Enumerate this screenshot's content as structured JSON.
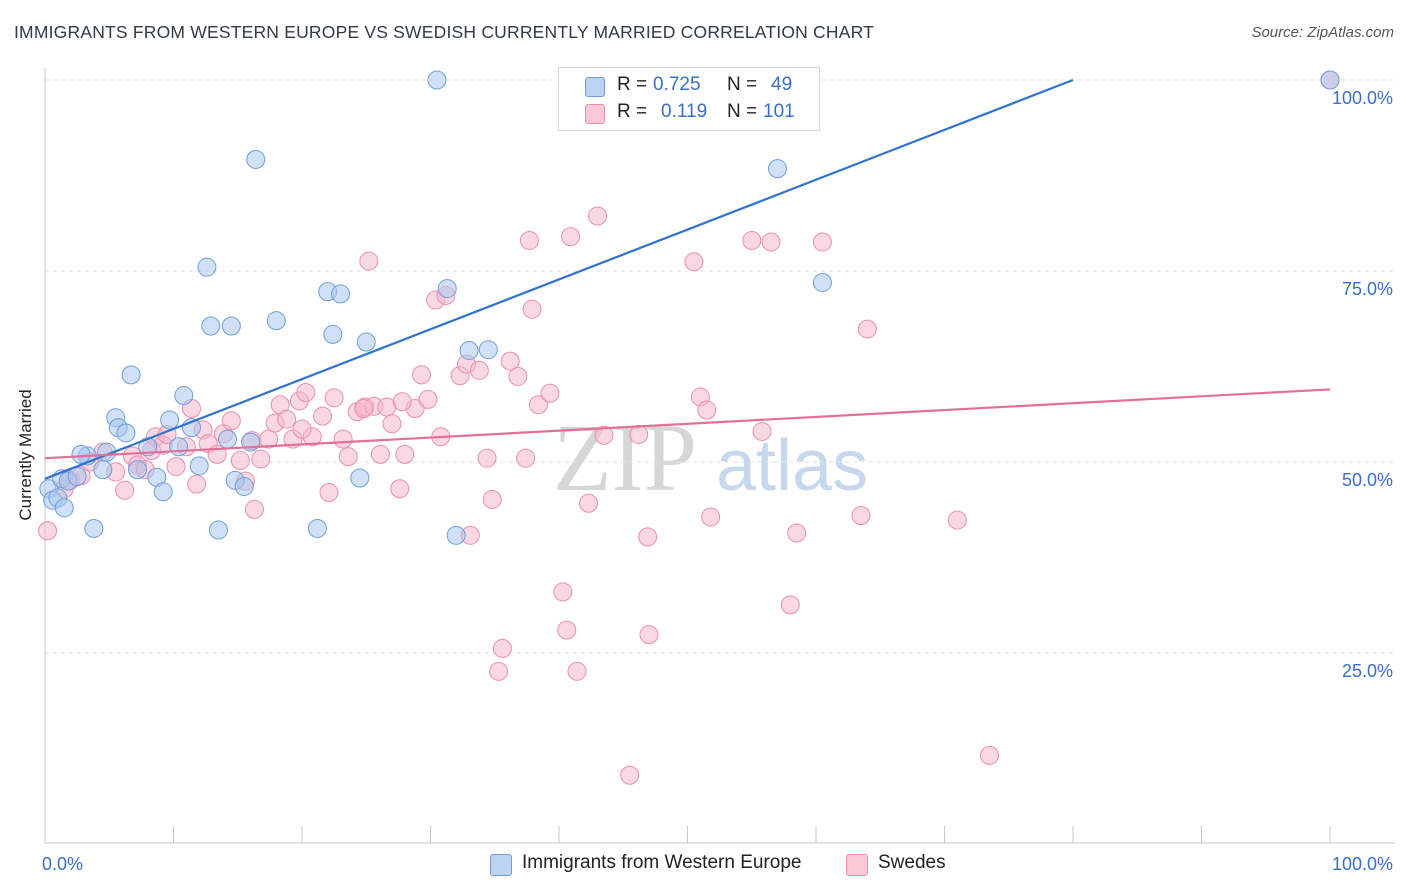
{
  "header": {
    "title": "IMMIGRANTS FROM WESTERN EUROPE VS SWEDISH CURRENTLY MARRIED CORRELATION CHART",
    "source": "Source: ZipAtlas.com"
  },
  "legend": {
    "r_label": "R =",
    "n_label": "N =",
    "series1": {
      "r": "0.725",
      "n": "49"
    },
    "series2": {
      "r": "0.119",
      "n": "101"
    }
  },
  "bottom_legend": {
    "series1": "Immigrants from Western Europe",
    "series2": "Swedes"
  },
  "watermark": {
    "zip": "ZIP",
    "atlas": "atlas"
  },
  "colors": {
    "blue_fill": "#a9c6ee",
    "blue_stroke": "#6f9fdb",
    "blue_line": "#2f72d0",
    "pink_fill": "#f6b8cc",
    "pink_stroke": "#ea8fae",
    "pink_line": "#e36f98",
    "axis_label": "#3a6fc4",
    "grid": "#e2e2e2"
  },
  "chart_data": {
    "type": "scatter",
    "title": "IMMIGRANTS FROM WESTERN EUROPE VS SWEDISH CURRENTLY MARRIED CORRELATION CHART",
    "xlabel": "",
    "ylabel": "Currently Married",
    "xlim": [
      0,
      100
    ],
    "ylim": [
      0,
      105
    ],
    "x_tick_labels": [
      "0.0%",
      "100.0%"
    ],
    "y_ticks": [
      25,
      50,
      75,
      100
    ],
    "y_tick_labels": [
      "25.0%",
      "50.0%",
      "75.0%",
      "100.0%"
    ],
    "grid": true,
    "legend_position": "top-center",
    "series": [
      {
        "name": "Immigrants from Western Europe",
        "R": 0.725,
        "N": 49,
        "trend": {
          "x": [
            0,
            80
          ],
          "y": [
            47.8,
            100
          ]
        },
        "points": [
          [
            0.3,
            46.5
          ],
          [
            0.6,
            45.0
          ],
          [
            1.0,
            45.3
          ],
          [
            1.3,
            47.8
          ],
          [
            1.8,
            47.5
          ],
          [
            2.5,
            48.1
          ],
          [
            3.3,
            50.8
          ],
          [
            3.8,
            41.3
          ],
          [
            4.5,
            49.0
          ],
          [
            4.8,
            51.3
          ],
          [
            5.5,
            55.8
          ],
          [
            5.7,
            54.5
          ],
          [
            6.3,
            53.8
          ],
          [
            6.7,
            61.4
          ],
          [
            7.2,
            49.0
          ],
          [
            8.0,
            52.0
          ],
          [
            8.7,
            48.0
          ],
          [
            9.2,
            46.1
          ],
          [
            9.7,
            55.5
          ],
          [
            10.4,
            52.0
          ],
          [
            10.8,
            58.7
          ],
          [
            11.4,
            54.5
          ],
          [
            12.0,
            49.5
          ],
          [
            12.6,
            75.5
          ],
          [
            12.9,
            67.8
          ],
          [
            13.5,
            41.1
          ],
          [
            14.2,
            53.0
          ],
          [
            14.5,
            67.8
          ],
          [
            14.8,
            47.6
          ],
          [
            15.5,
            46.8
          ],
          [
            16.0,
            52.6
          ],
          [
            16.4,
            89.6
          ],
          [
            18.0,
            68.5
          ],
          [
            21.2,
            41.3
          ],
          [
            22.0,
            72.3
          ],
          [
            22.4,
            66.7
          ],
          [
            23.0,
            72.0
          ],
          [
            25.0,
            65.7
          ],
          [
            24.5,
            47.9
          ],
          [
            30.5,
            100.0
          ],
          [
            31.3,
            72.7
          ],
          [
            32.0,
            40.4
          ],
          [
            33.0,
            64.6
          ],
          [
            34.5,
            64.7
          ],
          [
            57.0,
            88.4
          ],
          [
            60.5,
            73.5
          ],
          [
            100.0,
            100.0
          ],
          [
            1.5,
            44.0
          ],
          [
            2.8,
            51.0
          ]
        ]
      },
      {
        "name": "Swedes",
        "R": 0.119,
        "N": 101,
        "trend": {
          "x": [
            0,
            100
          ],
          "y": [
            50.5,
            59.5
          ]
        },
        "points": [
          [
            0.2,
            41.0
          ],
          [
            1.5,
            46.5
          ],
          [
            2.0,
            47.6
          ],
          [
            2.8,
            48.2
          ],
          [
            3.5,
            50.0
          ],
          [
            4.5,
            51.3
          ],
          [
            5.5,
            48.7
          ],
          [
            6.2,
            46.3
          ],
          [
            6.8,
            50.8
          ],
          [
            7.2,
            49.6
          ],
          [
            7.8,
            49.0
          ],
          [
            8.3,
            51.5
          ],
          [
            8.6,
            53.3
          ],
          [
            9.2,
            52.2
          ],
          [
            9.5,
            53.6
          ],
          [
            10.2,
            49.4
          ],
          [
            11.0,
            52.0
          ],
          [
            11.4,
            57.0
          ],
          [
            11.8,
            47.1
          ],
          [
            12.3,
            54.2
          ],
          [
            12.7,
            52.4
          ],
          [
            13.4,
            51.0
          ],
          [
            13.9,
            53.7
          ],
          [
            14.5,
            55.4
          ],
          [
            15.2,
            50.2
          ],
          [
            15.6,
            47.5
          ],
          [
            16.1,
            52.8
          ],
          [
            16.8,
            50.4
          ],
          [
            17.4,
            53.0
          ],
          [
            17.9,
            55.1
          ],
          [
            18.3,
            57.5
          ],
          [
            18.8,
            55.6
          ],
          [
            19.3,
            53.0
          ],
          [
            19.8,
            58.0
          ],
          [
            20.3,
            59.1
          ],
          [
            20.8,
            53.3
          ],
          [
            21.6,
            56.0
          ],
          [
            22.1,
            46.0
          ],
          [
            22.5,
            58.4
          ],
          [
            23.2,
            53.0
          ],
          [
            23.6,
            50.7
          ],
          [
            24.3,
            56.6
          ],
          [
            24.9,
            57.2
          ],
          [
            25.2,
            76.3
          ],
          [
            25.6,
            57.3
          ],
          [
            26.1,
            51.0
          ],
          [
            26.6,
            57.2
          ],
          [
            27.0,
            55.0
          ],
          [
            27.6,
            46.5
          ],
          [
            28.0,
            51.0
          ],
          [
            28.8,
            57.0
          ],
          [
            29.3,
            61.4
          ],
          [
            29.8,
            58.2
          ],
          [
            30.4,
            71.2
          ],
          [
            30.8,
            53.3
          ],
          [
            31.2,
            71.8
          ],
          [
            32.3,
            61.3
          ],
          [
            32.8,
            62.8
          ],
          [
            33.1,
            40.4
          ],
          [
            33.8,
            62.0
          ],
          [
            34.4,
            50.5
          ],
          [
            34.8,
            45.1
          ],
          [
            35.3,
            22.6
          ],
          [
            35.6,
            25.6
          ],
          [
            36.2,
            63.2
          ],
          [
            36.8,
            61.2
          ],
          [
            37.4,
            50.5
          ],
          [
            37.7,
            79.0
          ],
          [
            37.9,
            70.0
          ],
          [
            38.4,
            57.5
          ],
          [
            39.3,
            59.0
          ],
          [
            40.3,
            33.0
          ],
          [
            40.6,
            28.0
          ],
          [
            40.9,
            79.5
          ],
          [
            41.4,
            22.6
          ],
          [
            42.3,
            44.6
          ],
          [
            43.0,
            82.2
          ],
          [
            43.5,
            53.5
          ],
          [
            45.5,
            9.0
          ],
          [
            46.2,
            53.6
          ],
          [
            47.0,
            27.4
          ],
          [
            51.0,
            58.5
          ],
          [
            51.5,
            56.8
          ],
          [
            51.8,
            42.8
          ],
          [
            55.0,
            79.0
          ],
          [
            56.5,
            78.8
          ],
          [
            58.0,
            31.3
          ],
          [
            58.5,
            40.7
          ],
          [
            60.5,
            78.8
          ],
          [
            63.5,
            43.0
          ],
          [
            64.0,
            67.4
          ],
          [
            71.0,
            42.4
          ],
          [
            73.5,
            11.6
          ],
          [
            100.0,
            100.0
          ],
          [
            55.8,
            54.0
          ],
          [
            46.9,
            40.2
          ],
          [
            50.5,
            76.2
          ],
          [
            24.8,
            57.0
          ],
          [
            20.0,
            54.3
          ],
          [
            16.3,
            43.8
          ],
          [
            27.8,
            57.9
          ]
        ]
      }
    ]
  }
}
